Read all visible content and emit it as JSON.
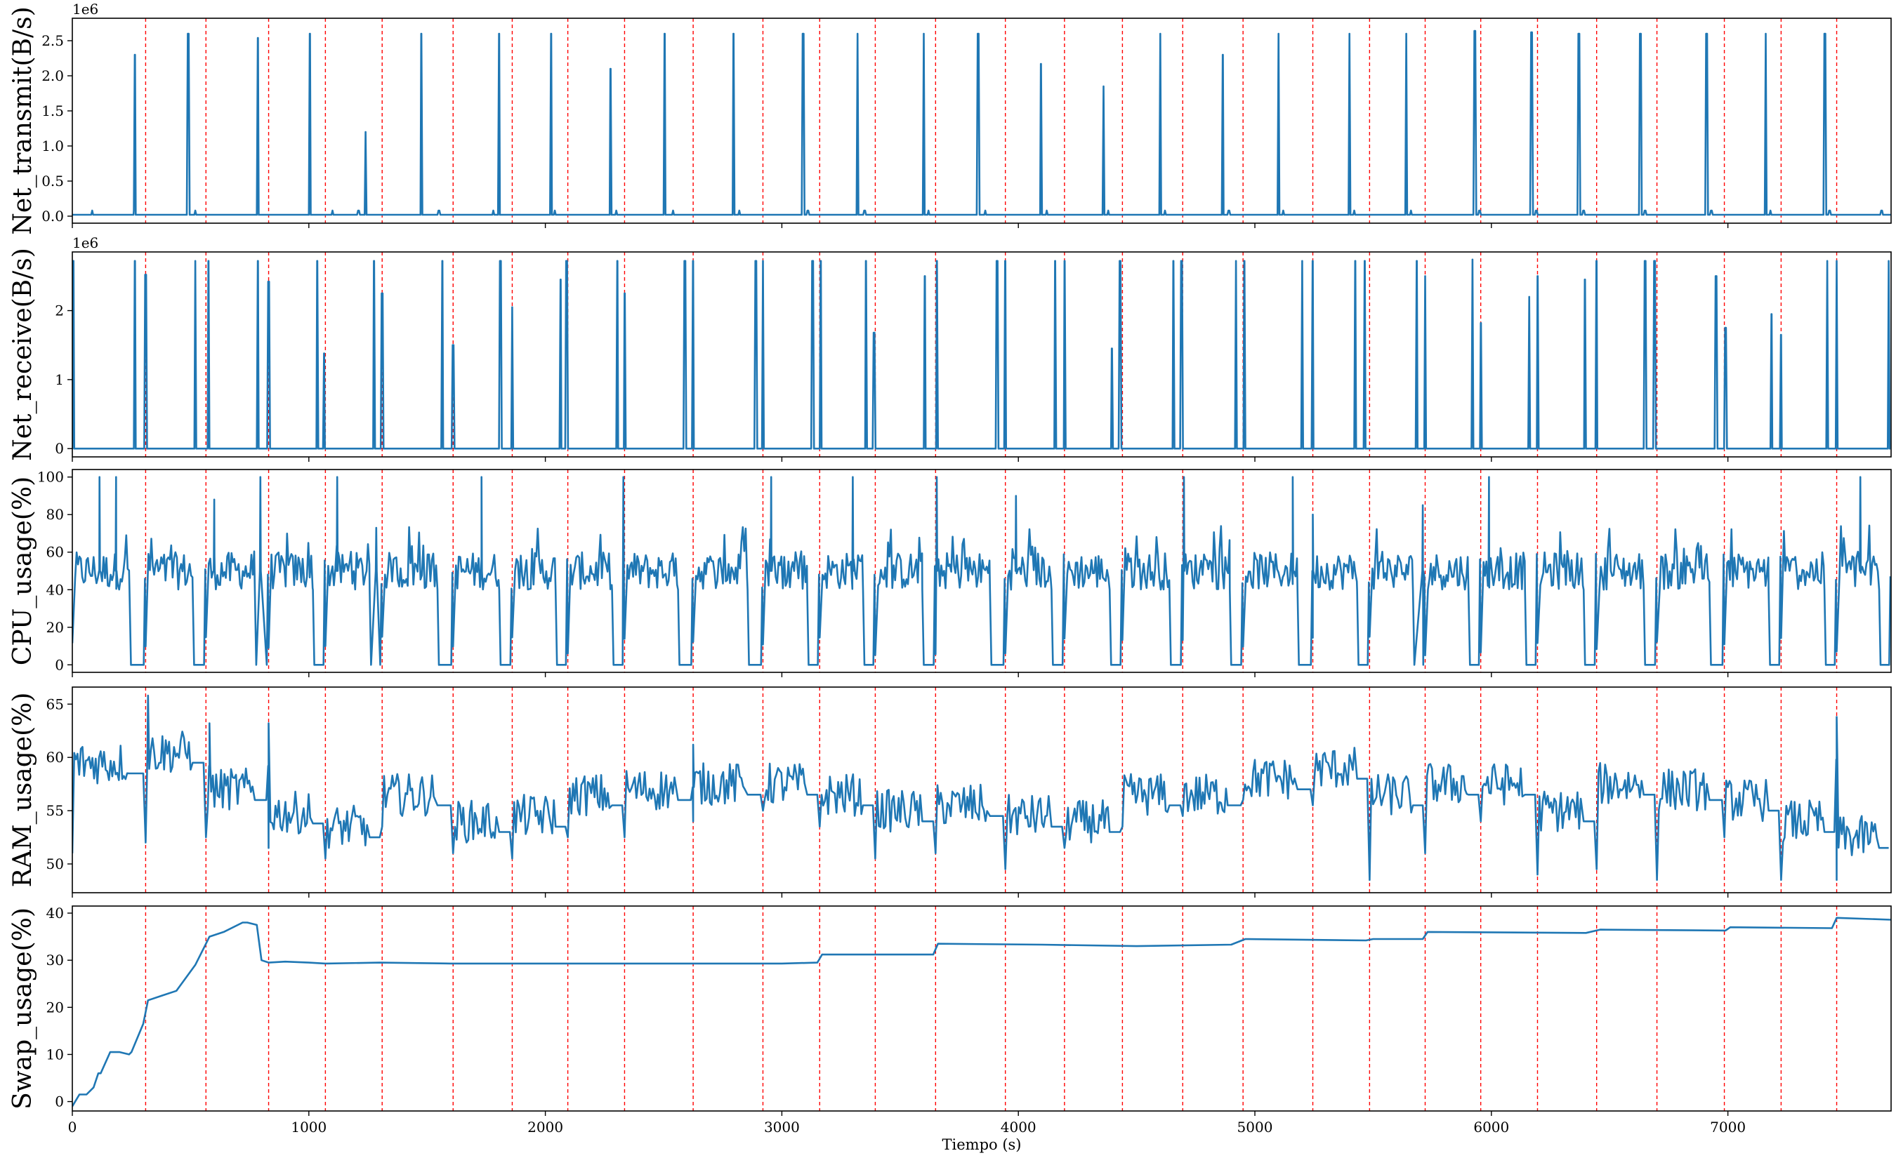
{
  "chart_data": [
    {
      "type": "line",
      "ylabel": "Net_transmit(B/s)",
      "y_offset_label": "1e6",
      "ylim": [
        -0.1,
        2.82
      ],
      "yticks": [
        0.0,
        0.5,
        1.0,
        1.5,
        2.0,
        2.5
      ],
      "ytick_labels": [
        "0.0",
        "0.5",
        "1.0",
        "1.5",
        "2.0",
        "2.5"
      ],
      "baseline": 0.02,
      "spikes": [
        [
          265,
          2.3
        ],
        [
          490,
          2.6
        ],
        [
          785,
          2.54
        ],
        [
          1005,
          2.6
        ],
        [
          1240,
          1.2
        ],
        [
          1475,
          2.6
        ],
        [
          1805,
          2.6
        ],
        [
          2025,
          2.6
        ],
        [
          2275,
          2.1
        ],
        [
          2505,
          2.6
        ],
        [
          2795,
          2.6
        ],
        [
          3090,
          2.6
        ],
        [
          3320,
          2.6
        ],
        [
          3600,
          2.6
        ],
        [
          3830,
          2.6
        ],
        [
          4095,
          2.17
        ],
        [
          4360,
          1.85
        ],
        [
          4600,
          2.6
        ],
        [
          4865,
          2.3
        ],
        [
          5100,
          2.6
        ],
        [
          5400,
          2.6
        ],
        [
          5640,
          2.6
        ],
        [
          5930,
          2.64
        ],
        [
          6170,
          2.62
        ],
        [
          6370,
          2.6
        ],
        [
          6630,
          2.6
        ],
        [
          6910,
          2.6
        ],
        [
          7160,
          2.6
        ],
        [
          7410,
          2.6
        ]
      ],
      "small_bumps": [
        85,
        260,
        520,
        1100,
        1210,
        1550,
        1780,
        2040,
        2300,
        2540,
        2820,
        3110,
        3350,
        3620,
        3860,
        4120,
        4380,
        4620,
        4890,
        5120,
        5420,
        5660,
        5950,
        6190,
        6390,
        6650,
        6930,
        7180,
        7430,
        7650
      ]
    },
    {
      "type": "line",
      "ylabel": "Net_receive(B/s)",
      "y_offset_label": "1e6",
      "ylim": [
        -0.12,
        2.85
      ],
      "yticks": [
        0,
        1,
        2
      ],
      "ytick_labels": [
        "0",
        "1",
        "2"
      ],
      "baseline": 0.0,
      "spikes": [
        [
          5,
          2.72
        ],
        [
          265,
          2.72
        ],
        [
          310,
          2.52
        ],
        [
          520,
          2.72
        ],
        [
          575,
          2.72
        ],
        [
          785,
          2.72
        ],
        [
          830,
          2.42
        ],
        [
          1035,
          2.72
        ],
        [
          1065,
          1.38
        ],
        [
          1275,
          2.72
        ],
        [
          1310,
          2.25
        ],
        [
          1565,
          2.72
        ],
        [
          1610,
          1.5
        ],
        [
          1810,
          2.72
        ],
        [
          1860,
          2.05
        ],
        [
          2065,
          2.45
        ],
        [
          2090,
          2.72
        ],
        [
          2305,
          2.72
        ],
        [
          2335,
          2.25
        ],
        [
          2590,
          2.72
        ],
        [
          2625,
          2.72
        ],
        [
          2890,
          2.72
        ],
        [
          2920,
          2.72
        ],
        [
          3130,
          2.72
        ],
        [
          3165,
          2.72
        ],
        [
          3355,
          2.72
        ],
        [
          3390,
          1.68
        ],
        [
          3605,
          2.5
        ],
        [
          3655,
          2.72
        ],
        [
          3910,
          2.72
        ],
        [
          3945,
          2.72
        ],
        [
          4155,
          2.72
        ],
        [
          4195,
          2.72
        ],
        [
          4395,
          1.45
        ],
        [
          4430,
          2.72
        ],
        [
          4655,
          2.72
        ],
        [
          4690,
          2.72
        ],
        [
          4920,
          2.72
        ],
        [
          4955,
          2.72
        ],
        [
          5200,
          2.72
        ],
        [
          5245,
          2.72
        ],
        [
          5425,
          2.72
        ],
        [
          5465,
          2.72
        ],
        [
          5685,
          2.72
        ],
        [
          5720,
          2.5
        ],
        [
          5920,
          2.74
        ],
        [
          5955,
          1.82
        ],
        [
          6160,
          2.2
        ],
        [
          6195,
          2.5
        ],
        [
          6395,
          2.45
        ],
        [
          6445,
          2.72
        ],
        [
          6650,
          2.72
        ],
        [
          6690,
          2.72
        ],
        [
          6950,
          2.5
        ],
        [
          6990,
          1.75
        ],
        [
          7185,
          1.95
        ],
        [
          7225,
          1.65
        ],
        [
          7420,
          2.72
        ],
        [
          7460,
          2.72
        ],
        [
          7680,
          2.72
        ]
      ],
      "small_bumps": []
    },
    {
      "type": "line",
      "ylabel": "CPU_usage(%)",
      "ylim": [
        -4,
        104
      ],
      "yticks": [
        0,
        20,
        40,
        60,
        80,
        100
      ],
      "ytick_labels": [
        "0",
        "20",
        "40",
        "60",
        "80",
        "100"
      ],
      "cycle_boundaries": [
        0,
        310,
        565,
        830,
        1070,
        1310,
        1610,
        1860,
        2095,
        2335,
        2625,
        2920,
        3160,
        3395,
        3650,
        3945,
        4195,
        4440,
        4695,
        4950,
        5245,
        5485,
        5720,
        5955,
        6195,
        6445,
        6700,
        6985,
        7225,
        7460,
        7690
      ],
      "idle_level": 0,
      "active_level": 50,
      "active_spread": 10,
      "peaks": [
        [
          115,
          100
        ],
        [
          185,
          100
        ],
        [
          600,
          88
        ],
        [
          795,
          100
        ],
        [
          1120,
          100
        ],
        [
          1285,
          73
        ],
        [
          1730,
          100
        ],
        [
          2330,
          100
        ],
        [
          2955,
          100
        ],
        [
          3300,
          100
        ],
        [
          3655,
          100
        ],
        [
          3990,
          90
        ],
        [
          4700,
          100
        ],
        [
          5160,
          100
        ],
        [
          5245,
          80
        ],
        [
          5710,
          85
        ],
        [
          5990,
          100
        ],
        [
          7560,
          100
        ]
      ]
    },
    {
      "type": "line",
      "ylabel": "RAM_usage(%)",
      "ylim": [
        47.3,
        66.6
      ],
      "yticks": [
        50,
        55,
        60,
        65
      ],
      "ytick_labels": [
        "50",
        "55",
        "60",
        "65"
      ],
      "cycle_means": [
        59.5,
        60.5,
        57.0,
        54.8,
        53.5,
        56.5,
        54.0,
        54.5,
        56.5,
        57.0,
        57.5,
        57.5,
        56.5,
        55.0,
        55.5,
        54.5,
        54.0,
        56.5,
        56.5,
        58.0,
        59.0,
        56.5,
        57.5,
        57.5,
        55.0,
        57.5,
        57.0,
        56.0,
        54.0,
        52.5
      ],
      "cycle_dips": [
        51,
        52,
        52.5,
        51.5,
        50.5,
        53.5,
        51.0,
        50.5,
        52.5,
        52.5,
        54.0,
        55.0,
        53.5,
        50.5,
        51.0,
        49.5,
        51.5,
        53.5,
        54.5,
        56.0,
        55.5,
        48.5,
        51.0,
        54.0,
        49.0,
        49.5,
        48.5,
        52.5,
        48.5,
        48.5
      ],
      "peaks": [
        [
          320,
          65.8
        ],
        [
          580,
          63.2
        ],
        [
          830,
          63.2
        ],
        [
          2625,
          61.2
        ],
        [
          7460,
          63.8
        ]
      ]
    },
    {
      "type": "line",
      "ylabel": "Swap_usage(%)",
      "ylim": [
        -2,
        41.5
      ],
      "yticks": [
        0,
        10,
        20,
        30,
        40
      ],
      "ytick_labels": [
        "0",
        "10",
        "20",
        "30",
        "40"
      ],
      "x": [
        0,
        30,
        60,
        90,
        110,
        120,
        160,
        200,
        240,
        250,
        300,
        320,
        380,
        440,
        520,
        560,
        580,
        640,
        720,
        740,
        780,
        800,
        830,
        900,
        1000,
        1070,
        1300,
        1600,
        2000,
        2500,
        3000,
        3150,
        3170,
        3640,
        3660,
        4100,
        4500,
        4900,
        4960,
        5470,
        5500,
        5710,
        5730,
        6400,
        6460,
        6990,
        7010,
        7440,
        7460,
        7690
      ],
      "y": [
        -1,
        1.5,
        1.5,
        3,
        6,
        6,
        10.5,
        10.5,
        10,
        10.5,
        16.5,
        21.5,
        22.5,
        23.5,
        29,
        33,
        35,
        36,
        38,
        38,
        37.5,
        30,
        29.5,
        29.7,
        29.5,
        29.3,
        29.5,
        29.3,
        29.3,
        29.3,
        29.3,
        29.5,
        31.2,
        31.2,
        33.5,
        33.3,
        33.0,
        33.3,
        34.5,
        34.2,
        34.5,
        34.5,
        36.0,
        35.8,
        36.5,
        36.3,
        37.0,
        36.8,
        39.0,
        38.6
      ]
    }
  ],
  "shared_x": {
    "xlabel": "Tiempo (s)",
    "xlim": [
      0,
      7690
    ],
    "xticks": [
      0,
      1000,
      2000,
      3000,
      4000,
      5000,
      6000,
      7000
    ],
    "xtick_labels": [
      "0",
      "1000",
      "2000",
      "3000",
      "4000",
      "5000",
      "6000",
      "7000"
    ],
    "red_dashed_lines": [
      310,
      565,
      830,
      1070,
      1310,
      1610,
      1860,
      2095,
      2335,
      2625,
      2920,
      3160,
      3395,
      3650,
      3945,
      4195,
      4440,
      4695,
      4950,
      5245,
      5485,
      5720,
      5955,
      6195,
      6445,
      6700,
      6985,
      7225,
      7460
    ]
  },
  "colors": {
    "series": "#1f77b4",
    "event_lines": "#ff0000"
  }
}
